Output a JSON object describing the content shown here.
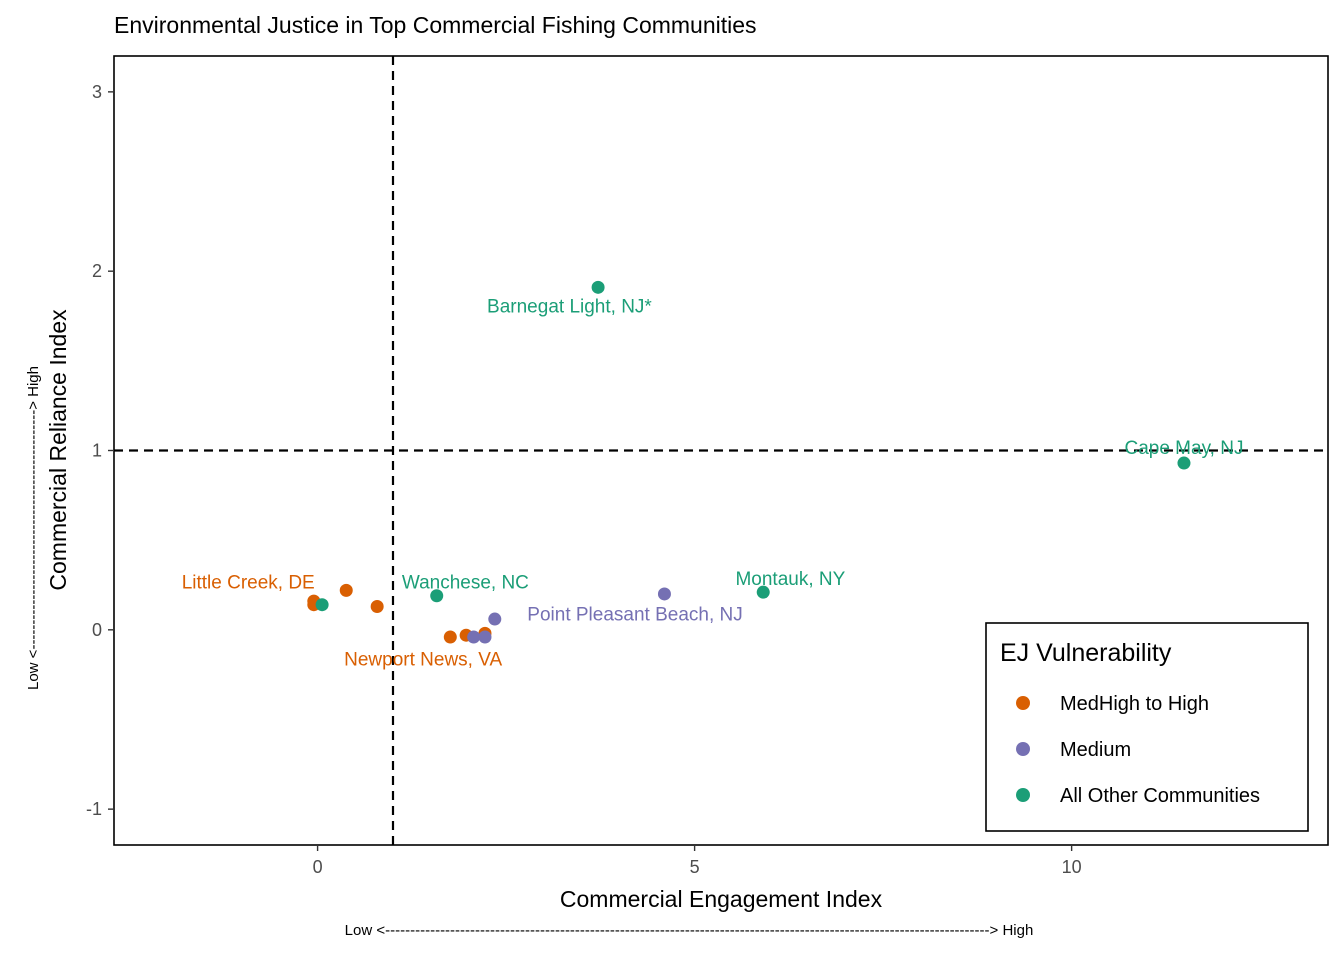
{
  "chart_data": {
    "type": "scatter",
    "title": "Environmental Justice in Top Commercial Fishing Communities",
    "xlabel": "Commercial Engagement Index",
    "ylabel": "Commercial Reliance Index",
    "x_note": "Low <-------------------------------------------------------------------------------------------------------------------------> High",
    "y_note": "Low <------------------------------------------------> High",
    "xlim": [
      -2.7,
      13.4
    ],
    "ylim": [
      -1.2,
      3.2
    ],
    "x_ticks": [
      0,
      5,
      10
    ],
    "y_ticks": [
      -1,
      0,
      1,
      2,
      3
    ],
    "grid": false,
    "reference_lines": {
      "x": 1,
      "y": 1,
      "style": "dashed"
    },
    "legend": {
      "title": "EJ Vulnerability",
      "position": "bottom-right",
      "items": [
        {
          "name": "MedHigh to High",
          "color": "#d95f02"
        },
        {
          "name": "Medium",
          "color": "#7570b3"
        },
        {
          "name": "All Other Communities",
          "color": "#1b9e77"
        }
      ]
    },
    "series": [
      {
        "name": "MedHigh to High",
        "color": "#d95f02",
        "points": [
          {
            "x": -0.05,
            "y": 0.16
          },
          {
            "x": -0.05,
            "y": 0.14
          },
          {
            "x": 0.38,
            "y": 0.22
          },
          {
            "x": 0.79,
            "y": 0.13
          },
          {
            "x": 1.76,
            "y": -0.04
          },
          {
            "x": 1.97,
            "y": -0.03
          },
          {
            "x": 2.22,
            "y": -0.02
          }
        ]
      },
      {
        "name": "Medium",
        "color": "#7570b3",
        "points": [
          {
            "x": 2.07,
            "y": -0.04
          },
          {
            "x": 2.22,
            "y": -0.04
          },
          {
            "x": 2.35,
            "y": 0.06
          },
          {
            "x": 4.6,
            "y": 0.2
          }
        ]
      },
      {
        "name": "All Other Communities",
        "color": "#1b9e77",
        "points": [
          {
            "x": 0.06,
            "y": 0.14
          },
          {
            "x": 1.58,
            "y": 0.19
          },
          {
            "x": 3.72,
            "y": 1.91
          },
          {
            "x": 5.91,
            "y": 0.21
          },
          {
            "x": 11.49,
            "y": 0.93
          }
        ]
      }
    ],
    "annotations": [
      {
        "text": "Barnegat Light, NJ*",
        "x": 3.34,
        "y": 1.81,
        "color": "#1b9e77"
      },
      {
        "text": "Cape May, NJ",
        "x": 11.49,
        "y": 1.02,
        "color": "#1b9e77"
      },
      {
        "text": "Little Creek, DE",
        "x": -0.92,
        "y": 0.27,
        "color": "#d95f02"
      },
      {
        "text": "Wanchese, NC",
        "x": 1.96,
        "y": 0.27,
        "color": "#1b9e77"
      },
      {
        "text": "Montauk, NY",
        "x": 6.27,
        "y": 0.29,
        "color": "#1b9e77"
      },
      {
        "text": "Point Pleasant Beach, NJ",
        "x": 4.21,
        "y": 0.09,
        "color": "#7570b3"
      },
      {
        "text": "Newport News, VA",
        "x": 1.4,
        "y": -0.16,
        "color": "#d95f02"
      }
    ]
  }
}
